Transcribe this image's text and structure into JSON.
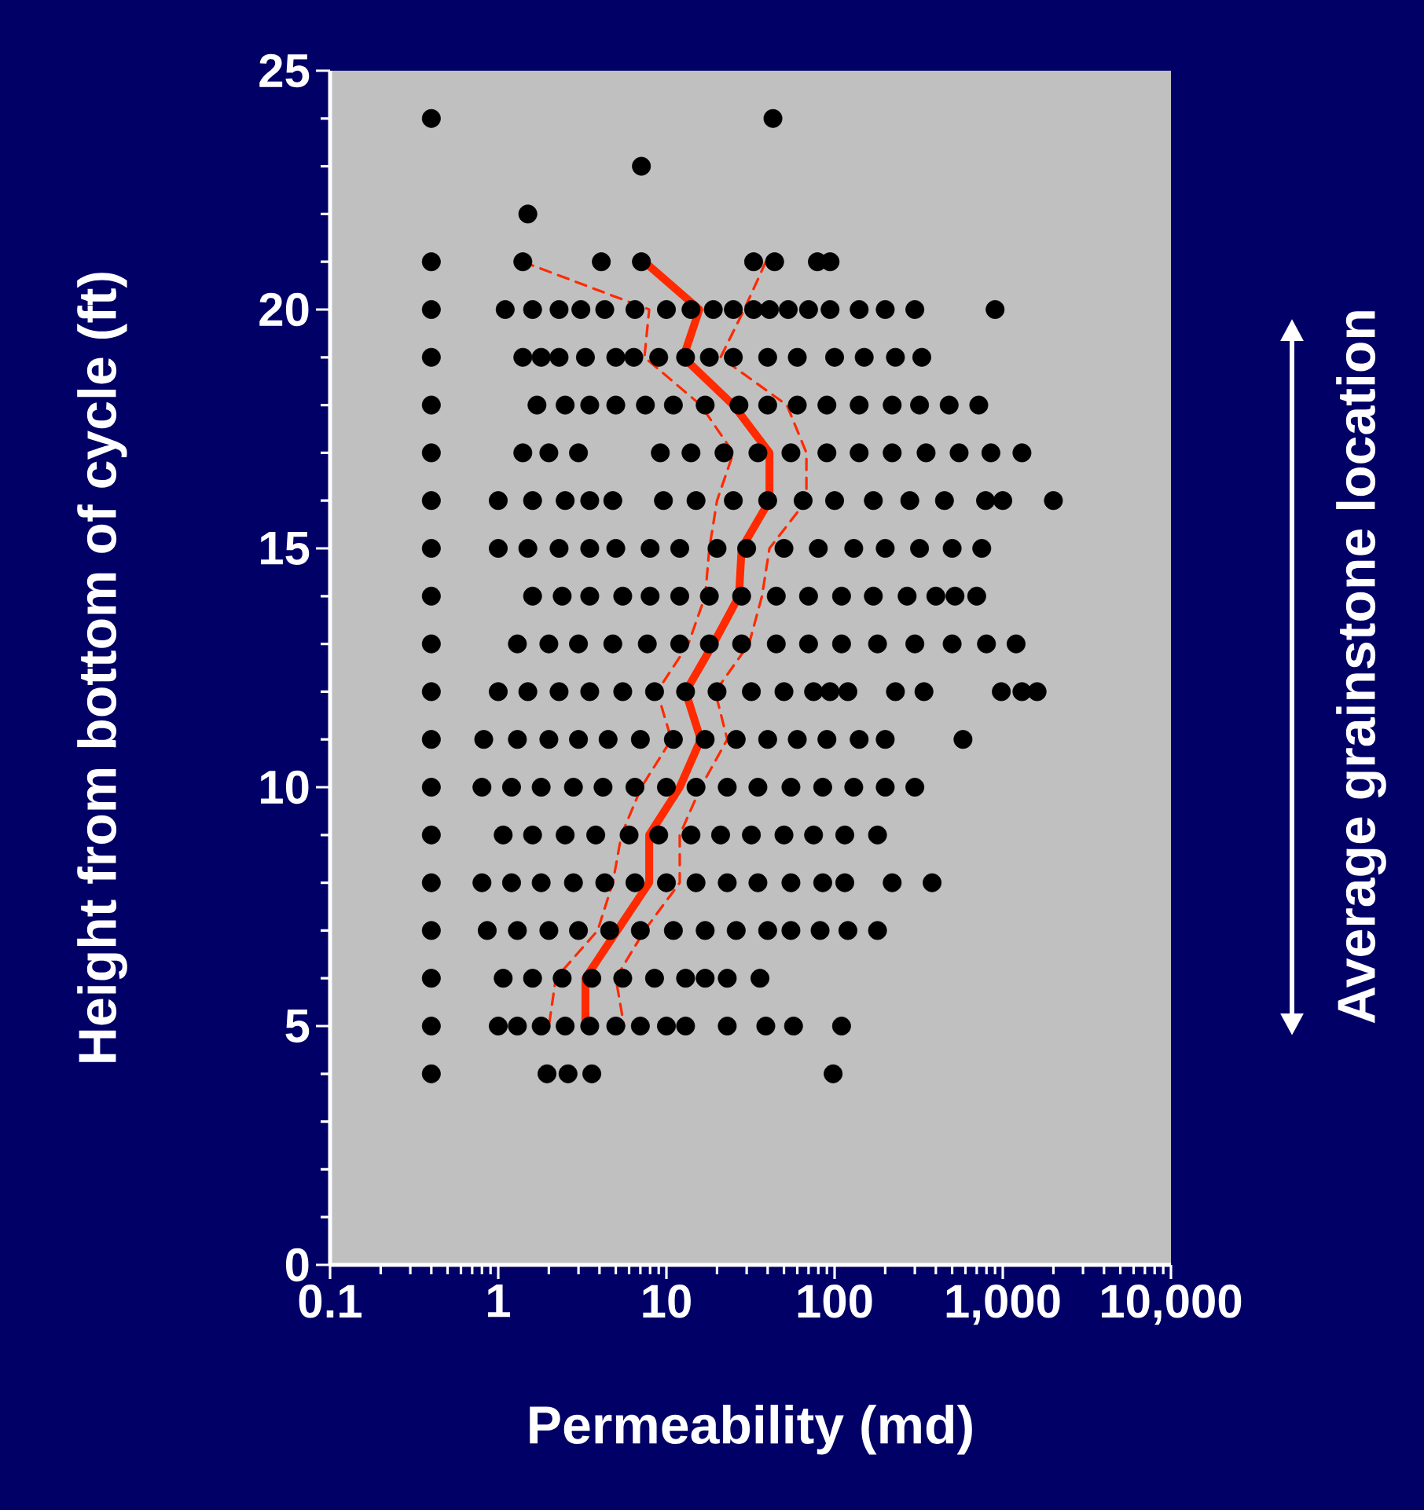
{
  "chart_data": {
    "type": "scatter",
    "xlabel": "Permeability (md)",
    "ylabel": "Height from bottom of cycle (ft)",
    "annotations": [
      "Average grainstone location"
    ],
    "log": "x",
    "xlim": [
      0.1,
      10000
    ],
    "ylim": [
      0,
      25
    ],
    "xticks": [
      0.1,
      1,
      10,
      100,
      {
        "value": 1000,
        "label": "1,000"
      },
      {
        "value": 10000,
        "label": "10,000"
      }
    ],
    "yticks": [
      0,
      5,
      10,
      15,
      20,
      25
    ],
    "series": [
      {
        "marker": "circle",
        "color": "#000000",
        "x": [
          0.4,
          43,
          7.1,
          1.5,
          0.4,
          1.4,
          4.1,
          7.1,
          33,
          44,
          79,
          94,
          0.4,
          1.1,
          1.6,
          2.3,
          3.1,
          4.3,
          6.5,
          10,
          14,
          19,
          25,
          33,
          41,
          53,
          70,
          94,
          140,
          200,
          300,
          900,
          0.4,
          1.4,
          1.8,
          2.3,
          3.3,
          5,
          6.4,
          9,
          13,
          18,
          25,
          40,
          60,
          100,
          150,
          230,
          330,
          0.4,
          1.7,
          2.5,
          3.5,
          5,
          7.5,
          11,
          17,
          27,
          40,
          60,
          90,
          140,
          220,
          320,
          480,
          720,
          0.4,
          1.4,
          2,
          3,
          9.2,
          14,
          22,
          35,
          55,
          90,
          140,
          220,
          350,
          550,
          850,
          1300,
          0.4,
          1,
          1.6,
          2.5,
          3.5,
          4.8,
          9.6,
          15,
          25,
          40,
          65,
          100,
          170,
          280,
          450,
          790,
          1000,
          2000,
          0.4,
          1,
          1.5,
          2.3,
          3.5,
          5,
          8,
          12,
          20,
          30,
          50,
          80,
          130,
          200,
          320,
          500,
          750,
          0.4,
          1.6,
          2.4,
          3.5,
          5.5,
          8,
          12,
          18,
          28,
          45,
          70,
          110,
          170,
          270,
          400,
          520,
          700,
          0.4,
          1.3,
          2,
          3,
          4.8,
          7.7,
          12,
          18,
          28,
          45,
          70,
          110,
          180,
          300,
          500,
          800,
          1200,
          0.4,
          1,
          1.5,
          2.3,
          3.5,
          5.5,
          8.5,
          13,
          20,
          32,
          50,
          75,
          94,
          120,
          230,
          340,
          980,
          1300,
          1600,
          0.4,
          0.82,
          1.3,
          2,
          3,
          4.5,
          7,
          11,
          17,
          26,
          40,
          60,
          90,
          140,
          200,
          580,
          0.4,
          0.8,
          1.2,
          1.8,
          2.8,
          4.2,
          6.5,
          10,
          15,
          23,
          35,
          55,
          85,
          130,
          200,
          300,
          0.4,
          1.07,
          1.6,
          2.5,
          3.8,
          6,
          9,
          14,
          21,
          32,
          50,
          75,
          115,
          180,
          0.4,
          0.8,
          1.2,
          1.8,
          2.8,
          4.3,
          6.5,
          10,
          15,
          23,
          35,
          55,
          85,
          115,
          220,
          380,
          0.4,
          0.86,
          1.3,
          2,
          3,
          4.6,
          7,
          11,
          17,
          26,
          40,
          55,
          82,
          120,
          180,
          0.4,
          1.07,
          1.6,
          2.4,
          3.6,
          5.5,
          8.5,
          13,
          17,
          23,
          36,
          0.4,
          1,
          1.3,
          1.8,
          2.5,
          3.5,
          5,
          7,
          10,
          13,
          23,
          39,
          57,
          110,
          0.4,
          1.95,
          2.6,
          3.6,
          98
        ],
        "values": [
          24,
          24,
          23,
          22,
          21,
          21,
          21,
          21,
          21,
          21,
          21,
          21,
          20,
          20,
          20,
          20,
          20,
          20,
          20,
          20,
          20,
          20,
          20,
          20,
          20,
          20,
          20,
          20,
          20,
          20,
          20,
          20,
          19,
          19,
          19,
          19,
          19,
          19,
          19,
          19,
          19,
          19,
          19,
          19,
          19,
          19,
          19,
          19,
          19,
          18,
          18,
          18,
          18,
          18,
          18,
          18,
          18,
          18,
          18,
          18,
          18,
          18,
          18,
          18,
          18,
          18,
          17,
          17,
          17,
          17,
          17,
          17,
          17,
          17,
          17,
          17,
          17,
          17,
          17,
          17,
          17,
          17,
          16,
          16,
          16,
          16,
          16,
          16,
          16,
          16,
          16,
          16,
          16,
          16,
          16,
          16,
          16,
          16,
          16,
          16,
          15,
          15,
          15,
          15,
          15,
          15,
          15,
          15,
          15,
          15,
          15,
          15,
          15,
          15,
          15,
          15,
          15,
          14,
          14,
          14,
          14,
          14,
          14,
          14,
          14,
          14,
          14,
          14,
          14,
          14,
          14,
          14,
          14,
          14,
          13,
          13,
          13,
          13,
          13,
          13,
          13,
          13,
          13,
          13,
          13,
          13,
          13,
          13,
          13,
          13,
          13,
          12,
          12,
          12,
          12,
          12,
          12,
          12,
          12,
          12,
          12,
          12,
          12,
          12,
          12,
          12,
          12,
          12,
          12,
          12,
          11,
          11,
          11,
          11,
          11,
          11,
          11,
          11,
          11,
          11,
          11,
          11,
          11,
          11,
          11,
          11,
          10,
          10,
          10,
          10,
          10,
          10,
          10,
          10,
          10,
          10,
          10,
          10,
          10,
          10,
          10,
          10,
          9,
          9,
          9,
          9,
          9,
          9,
          9,
          9,
          9,
          9,
          9,
          9,
          9,
          9,
          8,
          8,
          8,
          8,
          8,
          8,
          8,
          8,
          8,
          8,
          8,
          8,
          8,
          8,
          8,
          8,
          7,
          7,
          7,
          7,
          7,
          7,
          7,
          7,
          7,
          7,
          7,
          7,
          7,
          7,
          7,
          6,
          6,
          6,
          6,
          6,
          6,
          6,
          6,
          6,
          6,
          6,
          5,
          5,
          5,
          5,
          5,
          5,
          5,
          5,
          5,
          5,
          5,
          5,
          5,
          5,
          4,
          4,
          4,
          4,
          4
        ]
      },
      {
        "type": "line",
        "line_style": "solid",
        "color": "#ff2a00",
        "x": [
          7.4,
          15.7,
          12.6,
          25,
          41,
          41,
          28,
          27,
          19,
          13,
          16,
          12,
          7.9,
          7.9,
          5.1,
          3.3,
          3.3
        ],
        "values": [
          21,
          20,
          19,
          18,
          17,
          16,
          15,
          14,
          13,
          12,
          11,
          10,
          9,
          8,
          7,
          6,
          5
        ]
      },
      {
        "type": "line",
        "line_style": "dashed",
        "color": "#ff2a00",
        "x": [
          1.4,
          7.9,
          7.4,
          16,
          25,
          20,
          18,
          17,
          13.5,
          8.8,
          10.7,
          7.1,
          5.4,
          4.8,
          3.9,
          2.2,
          2
        ],
        "values": [
          21,
          20,
          19,
          18,
          17,
          16,
          15,
          14,
          13,
          12,
          11,
          10,
          9,
          8,
          7,
          6,
          5
        ]
      },
      {
        "type": "line",
        "line_style": "dashed",
        "color": "#ff2a00",
        "x": [
          39,
          29,
          21,
          52,
          68,
          68,
          41,
          37,
          31,
          19.5,
          23,
          16,
          12,
          12,
          7.4,
          5,
          5.6
        ],
        "values": [
          21,
          20,
          19,
          18,
          17,
          16,
          15,
          14,
          13,
          12,
          11,
          10,
          9,
          8,
          7,
          6,
          5
        ]
      }
    ]
  }
}
